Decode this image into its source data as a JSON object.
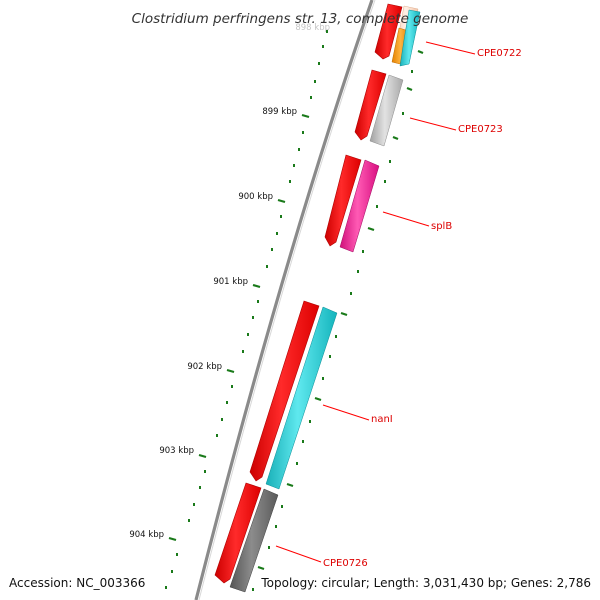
{
  "title": "Clostridium perfringens str. 13, complete genome",
  "scale": {
    "unit_suffix": " kbp",
    "ticks": [
      899,
      900,
      901,
      902,
      903,
      904
    ]
  },
  "genes": [
    {
      "name": "CPE0722",
      "color": "#00c8d2",
      "labeled": true
    },
    {
      "name": "CPE0723",
      "color": "#bdbdbd",
      "labeled": true
    },
    {
      "name": "splB",
      "color": "#ff1493",
      "labeled": true
    },
    {
      "name": "nanI",
      "color": "#22d3d3",
      "labeled": true
    },
    {
      "name": "CPE0726",
      "color": "#666666",
      "labeled": true
    }
  ],
  "colors": {
    "forward_gene": "#ff0000",
    "orange_gene": "#ff9900",
    "peach_gene": "#ffd9c0",
    "tick": "#1a7a1a",
    "backbone": "#888888",
    "label_line": "#ff0000"
  },
  "footer": {
    "accession": "Accession: NC_003366",
    "summary": "Topology: circular; Length: 3,031,430 bp; Genes: 2,786"
  }
}
